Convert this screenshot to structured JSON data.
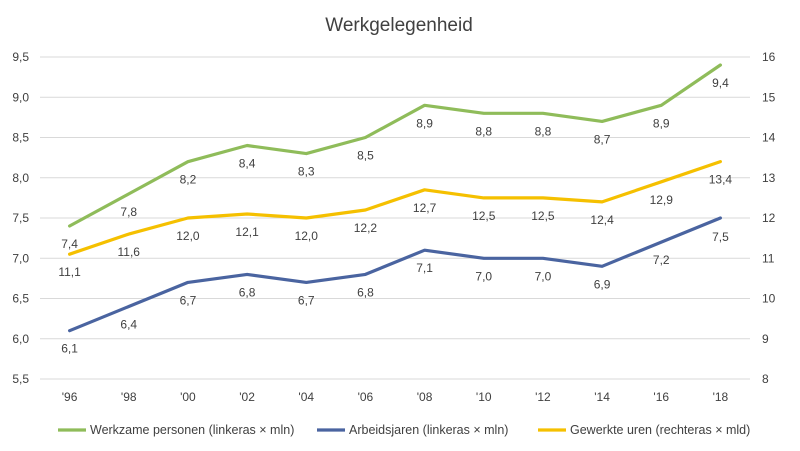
{
  "chart_data": {
    "type": "line",
    "title": "Werkgelegenheid",
    "categories": [
      "'96",
      "'98",
      "'00",
      "'02",
      "'04",
      "'06",
      "'08",
      "'10",
      "'12",
      "'14",
      "'16",
      "'18"
    ],
    "y_left": {
      "min": 5.5,
      "max": 9.5,
      "step": 0.5,
      "ticks": [
        "5,5",
        "6,0",
        "6,5",
        "7,0",
        "7,5",
        "8,0",
        "8,5",
        "9,0",
        "9,5"
      ]
    },
    "y_right": {
      "min": 8,
      "max": 16,
      "step": 1,
      "ticks": [
        "8",
        "9",
        "10",
        "11",
        "12",
        "13",
        "14",
        "15",
        "16"
      ]
    },
    "grid": true,
    "legend_position": "bottom",
    "series": [
      {
        "name": "Werkzame personen (linkeras × mln)",
        "axis": "left",
        "color": "#8fbc5a",
        "values": [
          7.4,
          7.8,
          8.2,
          8.4,
          8.3,
          8.5,
          8.9,
          8.8,
          8.8,
          8.7,
          8.9,
          9.4
        ],
        "labels": [
          "7,4",
          "7,8",
          "8,2",
          "8,4",
          "8,3",
          "8,5",
          "8,9",
          "8,8",
          "8,8",
          "8,7",
          "8,9",
          "9,4"
        ]
      },
      {
        "name": "Arbeidsjaren (linkeras × mln)",
        "axis": "left",
        "color": "#4a64a0",
        "values": [
          6.1,
          6.4,
          6.7,
          6.8,
          6.7,
          6.8,
          7.1,
          7.0,
          7.0,
          6.9,
          7.2,
          7.5
        ],
        "labels": [
          "6,1",
          "6,4",
          "6,7",
          "6,8",
          "6,7",
          "6,8",
          "7,1",
          "7,0",
          "7,0",
          "6,9",
          "7,2",
          "7,5"
        ]
      },
      {
        "name": "Gewerkte uren (rechteras × mld)",
        "axis": "right",
        "color": "#f5c000",
        "values": [
          11.1,
          11.6,
          12.0,
          12.1,
          12.0,
          12.2,
          12.7,
          12.5,
          12.5,
          12.4,
          12.9,
          13.4
        ],
        "labels": [
          "11,1",
          "11,6",
          "12,0",
          "12,1",
          "12,0",
          "12,2",
          "12,7",
          "12,5",
          "12,5",
          "12,4",
          "12,9",
          "13,4"
        ]
      }
    ]
  }
}
